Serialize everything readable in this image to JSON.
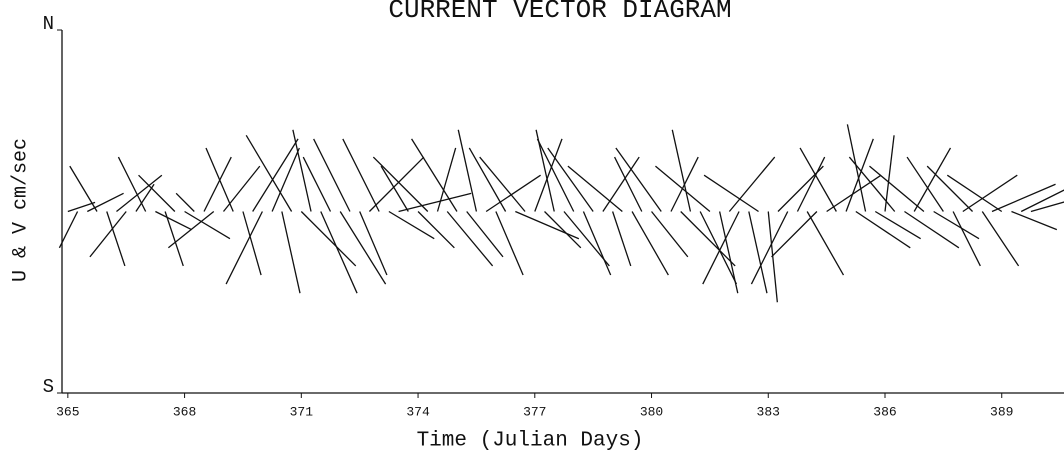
{
  "chart_data": {
    "type": "vector",
    "title": "CURRENT VECTOR DIAGRAM",
    "xlabel": "Time (Julian Days)",
    "ylabel": "U & V cm/sec",
    "color": "#111111",
    "xlim": [
      364.85,
      390.6
    ],
    "xticks": [
      365,
      368,
      371,
      374,
      377,
      380,
      383,
      386,
      389
    ],
    "ylim": [
      -1,
      1
    ],
    "yticks": [
      {
        "value": -1,
        "label": "S"
      },
      {
        "value": 1,
        "label": "N"
      }
    ],
    "x": [
      365,
      365.25,
      365.5,
      365.75,
      366,
      366.25,
      366.5,
      366.75,
      367,
      367.25,
      367.5,
      367.75,
      368,
      368.25,
      368.5,
      368.75,
      369,
      369.25,
      369.5,
      369.75,
      370,
      370.25,
      370.5,
      370.75,
      371,
      371.25,
      371.5,
      371.75,
      372,
      372.25,
      372.5,
      372.75,
      373,
      373.25,
      373.5,
      373.75,
      374,
      374.25,
      374.5,
      374.75,
      375,
      375.25,
      375.5,
      375.75,
      376,
      376.25,
      376.5,
      376.75,
      377,
      377.25,
      377.5,
      377.75,
      378,
      378.25,
      378.5,
      378.75,
      379,
      379.25,
      379.5,
      379.75,
      380,
      380.25,
      380.5,
      380.75,
      381,
      381.25,
      381.5,
      381.75,
      382,
      382.25,
      382.5,
      382.75,
      383,
      383.25,
      383.5,
      383.75,
      384,
      384.25,
      384.5,
      384.75,
      385,
      385.25,
      385.5,
      385.75,
      386,
      386.25,
      386.5,
      386.75,
      387,
      387.25,
      387.5,
      387.75,
      388,
      388.25,
      388.5,
      388.75,
      389,
      389.25,
      389.5,
      389.75
    ],
    "u": [
      0.15,
      -0.1,
      0.2,
      -0.15,
      0.1,
      0.25,
      -0.2,
      0.1,
      -0.15,
      0.2,
      0.1,
      -0.2,
      0.25,
      -0.1,
      0.15,
      -0.25,
      0.2,
      -0.15,
      0.1,
      0.25,
      -0.2,
      0.15,
      0.1,
      -0.25,
      0.3,
      -0.1,
      0.2,
      -0.15,
      0.25,
      -0.2,
      0.15,
      0.3,
      -0.2,
      0.25,
      0.4,
      -0.15,
      0.2,
      -0.3,
      0.1,
      0.25,
      -0.25,
      0.2,
      -0.1,
      0.3,
      0.15,
      -0.2,
      0.35,
      -0.25,
      0.15,
      0.2,
      -0.1,
      0.25,
      -0.2,
      0.15,
      -0.25,
      0.2,
      0.1,
      -0.3,
      0.2,
      -0.15,
      0.2,
      -0.25,
      0.15,
      0.3,
      -0.1,
      0.2,
      -0.3,
      0.1,
      0.25,
      -0.2,
      0.1,
      -0.3,
      0.05,
      0.25,
      -0.2,
      0.15,
      0.2,
      -0.25,
      0.3,
      -0.2,
      0.15,
      0.3,
      -0.1,
      0.25,
      0.05,
      -0.25,
      0.3,
      0.2,
      -0.3,
      0.25,
      -0.2,
      0.15,
      0.3,
      -0.25,
      0.2,
      0.35,
      -0.3,
      0.25,
      0.3,
      0.35
    ],
    "v": [
      0.05,
      -0.2,
      0.1,
      0.25,
      -0.3,
      0.2,
      -0.25,
      0.15,
      0.3,
      -0.1,
      -0.3,
      0.2,
      -0.15,
      0.1,
      0.3,
      -0.2,
      0.25,
      0.35,
      -0.35,
      0.4,
      -0.4,
      0.35,
      -0.45,
      0.42,
      -0.3,
      0.45,
      -0.45,
      0.3,
      -0.4,
      0.4,
      -0.35,
      0.3,
      0.4,
      -0.15,
      0.1,
      0.25,
      -0.2,
      0.3,
      0.35,
      -0.3,
      0.4,
      -0.25,
      0.45,
      0.2,
      -0.35,
      0.35,
      -0.15,
      0.3,
      0.4,
      -0.2,
      0.45,
      -0.3,
      0.4,
      -0.35,
      0.35,
      0.3,
      -0.3,
      0.25,
      -0.35,
      0.3,
      -0.25,
      0.35,
      0.3,
      -0.3,
      0.45,
      -0.4,
      0.25,
      -0.45,
      0.3,
      -0.4,
      -0.45,
      0.2,
      -0.5,
      0.25,
      -0.4,
      0.3,
      -0.35,
      -0.25,
      0.2,
      0.35,
      0.4,
      -0.2,
      0.48,
      -0.15,
      0.42,
      0.3,
      -0.2,
      0.35,
      0.25,
      -0.15,
      0.3,
      -0.3,
      0.2,
      0.25,
      -0.3,
      0.15,
      0.2,
      -0.1,
      0.15,
      0.1
    ]
  }
}
